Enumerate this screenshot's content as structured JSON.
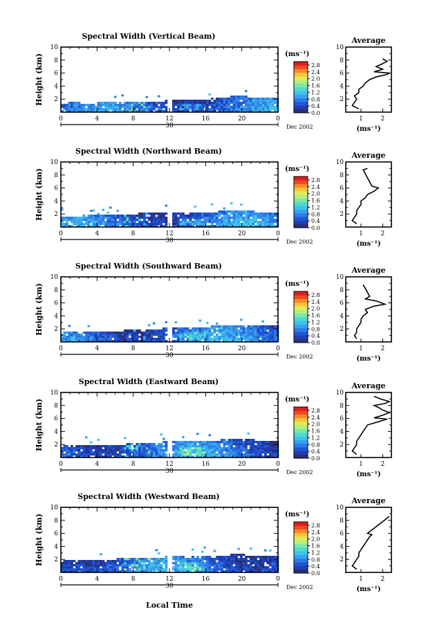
{
  "colors": {
    "colormap": [
      "#2c2f73",
      "#1f3fb0",
      "#1f57d6",
      "#2f7be6",
      "#39a1ee",
      "#3fc2ea",
      "#4fd9cf",
      "#7de6a8",
      "#b3ee80",
      "#e0ea5c",
      "#f6c43b",
      "#f78b2b",
      "#ef4a24",
      "#d9201f"
    ],
    "line": "#000000",
    "background": "#ffffff"
  },
  "figure": {
    "x_axis_label": "Local Time",
    "day_label": "30",
    "month_label": "Dec 2002"
  },
  "chart_data": [
    {
      "type": "heatmap",
      "title": "Spectral Width (Vertical Beam)",
      "ylabel": "Height (km)",
      "x_ticks": [
        "0",
        "4",
        "8",
        "12",
        "16",
        "20",
        "0"
      ],
      "xlim": [
        0,
        24
      ],
      "y_ticks": [
        "2",
        "4",
        "6",
        "8",
        "10"
      ],
      "ylim": [
        0,
        10
      ],
      "colorbar": {
        "unit": "(ms⁻¹)",
        "ticks": [
          "0.0",
          "0.4",
          "0.8",
          "1.2",
          "1.6",
          "2.0",
          "2.4",
          "2.8"
        ],
        "range": [
          0,
          3.0
        ]
      },
      "data_gap_hours": [
        11.8,
        12.3
      ],
      "echo_top_km": [
        [
          0,
          1.4
        ],
        [
          1,
          1.5
        ],
        [
          2,
          1.5
        ],
        [
          3,
          1.4
        ],
        [
          4,
          1.5
        ],
        [
          5,
          1.5
        ],
        [
          6,
          1.6
        ],
        [
          7,
          1.6
        ],
        [
          8,
          1.5
        ],
        [
          9,
          1.6
        ],
        [
          10,
          1.6
        ],
        [
          11,
          1.7
        ],
        [
          12.3,
          2.0
        ],
        [
          13,
          2.0
        ],
        [
          14,
          2.1
        ],
        [
          15,
          2.1
        ],
        [
          16,
          2.0
        ],
        [
          17,
          2.2
        ],
        [
          18,
          2.3
        ],
        [
          19,
          2.5
        ],
        [
          20,
          2.5
        ],
        [
          21,
          2.4
        ],
        [
          22,
          2.3
        ],
        [
          23,
          2.2
        ],
        [
          24,
          2.2
        ]
      ],
      "avg_panel": {
        "title": "Average",
        "xlabel": "(ms⁻¹)",
        "x_ticks": [
          "1",
          "2"
        ],
        "xlim": [
          0.3,
          2.4
        ],
        "profile": [
          [
            0.5,
            0.9
          ],
          [
            1.0,
            0.6
          ],
          [
            1.5,
            0.7
          ],
          [
            2.0,
            0.8
          ],
          [
            2.5,
            0.7
          ],
          [
            3.0,
            0.9
          ],
          [
            3.5,
            0.9
          ],
          [
            4.0,
            1.1
          ],
          [
            4.5,
            1.2
          ],
          [
            5.0,
            1.4
          ],
          [
            5.4,
            1.7
          ],
          [
            5.8,
            2.2
          ],
          [
            6.0,
            2.3
          ],
          [
            6.2,
            1.6
          ],
          [
            6.6,
            2.0
          ],
          [
            7.0,
            1.7
          ],
          [
            7.3,
            1.9
          ],
          [
            7.8,
            2.2
          ],
          [
            8.2,
            2.0
          ]
        ]
      }
    },
    {
      "type": "heatmap",
      "title": "Spectral Width (Northward Beam)",
      "ylabel": "Height (km)",
      "x_ticks": [
        "0",
        "4",
        "8",
        "12",
        "16",
        "20",
        "0"
      ],
      "xlim": [
        0,
        24
      ],
      "y_ticks": [
        "2",
        "4",
        "6",
        "8",
        "10"
      ],
      "ylim": [
        0,
        10
      ],
      "colorbar": {
        "unit": "(ms⁻¹)",
        "ticks": [
          "0.0",
          "0.4",
          "0.8",
          "1.2",
          "1.6",
          "2.0",
          "2.4",
          "2.8"
        ],
        "range": [
          0,
          3.0
        ]
      },
      "data_gap_hours": [
        11.8,
        12.3
      ],
      "echo_top_km": [
        [
          0,
          1.7
        ],
        [
          1,
          1.8
        ],
        [
          2,
          1.8
        ],
        [
          3,
          1.9
        ],
        [
          4,
          1.8
        ],
        [
          5,
          1.9
        ],
        [
          6,
          2.0
        ],
        [
          7,
          2.0
        ],
        [
          8,
          2.1
        ],
        [
          9,
          2.2
        ],
        [
          10,
          2.2
        ],
        [
          11,
          2.3
        ],
        [
          12.3,
          2.3
        ],
        [
          13,
          2.2
        ],
        [
          14,
          2.1
        ],
        [
          15,
          2.2
        ],
        [
          16,
          2.3
        ],
        [
          17,
          2.4
        ],
        [
          18,
          2.5
        ],
        [
          19,
          2.6
        ],
        [
          20,
          2.6
        ],
        [
          21,
          2.5
        ],
        [
          22,
          2.4
        ],
        [
          23,
          2.4
        ],
        [
          24,
          2.3
        ]
      ],
      "avg_panel": {
        "title": "Average",
        "xlabel": "(ms⁻¹)",
        "x_ticks": [
          "1",
          "2"
        ],
        "xlim": [
          0.3,
          2.4
        ],
        "profile": [
          [
            0.5,
            0.8
          ],
          [
            1.0,
            0.6
          ],
          [
            1.5,
            0.7
          ],
          [
            2.0,
            0.8
          ],
          [
            2.5,
            0.8
          ],
          [
            3.0,
            0.9
          ],
          [
            3.5,
            1.0
          ],
          [
            4.0,
            1.0
          ],
          [
            4.5,
            1.2
          ],
          [
            5.0,
            1.3
          ],
          [
            5.5,
            1.6
          ],
          [
            6.0,
            1.8
          ],
          [
            6.3,
            1.5
          ],
          [
            8.8,
            1.1
          ],
          [
            9.0,
            1.3
          ]
        ]
      }
    },
    {
      "type": "heatmap",
      "title": "Spectral Width (Southward Beam)",
      "ylabel": "Height (km)",
      "x_ticks": [
        "0",
        "4",
        "8",
        "12",
        "16",
        "20",
        "0"
      ],
      "xlim": [
        0,
        24
      ],
      "y_ticks": [
        "2",
        "4",
        "6",
        "8",
        "10"
      ],
      "ylim": [
        0,
        10
      ],
      "colorbar": {
        "unit": "(ms⁻¹)",
        "ticks": [
          "0.0",
          "0.4",
          "0.8",
          "1.2",
          "1.6",
          "2.0",
          "2.4",
          "2.8"
        ],
        "range": [
          0,
          3.0
        ]
      },
      "data_gap_hours": [
        11.8,
        12.3
      ],
      "echo_top_km": [
        [
          0,
          1.6
        ],
        [
          1,
          1.6
        ],
        [
          2,
          1.7
        ],
        [
          3,
          1.6
        ],
        [
          4,
          1.7
        ],
        [
          5,
          1.7
        ],
        [
          6,
          1.8
        ],
        [
          7,
          1.8
        ],
        [
          8,
          1.9
        ],
        [
          9,
          2.0
        ],
        [
          10,
          2.0
        ],
        [
          11,
          2.1
        ],
        [
          12.3,
          2.3
        ],
        [
          13,
          2.3
        ],
        [
          14,
          2.2
        ],
        [
          15,
          2.3
        ],
        [
          16,
          2.4
        ],
        [
          17,
          2.5
        ],
        [
          18,
          2.6
        ],
        [
          19,
          2.6
        ],
        [
          20,
          2.7
        ],
        [
          21,
          2.7
        ],
        [
          22,
          2.6
        ],
        [
          23,
          2.6
        ],
        [
          24,
          2.5
        ]
      ],
      "avg_panel": {
        "title": "Average",
        "xlabel": "(ms⁻¹)",
        "x_ticks": [
          "1",
          "2"
        ],
        "xlim": [
          0.3,
          2.4
        ],
        "profile": [
          [
            0.5,
            0.8
          ],
          [
            1.0,
            0.7
          ],
          [
            1.5,
            0.8
          ],
          [
            2.0,
            0.8
          ],
          [
            2.5,
            0.9
          ],
          [
            3.0,
            1.0
          ],
          [
            3.5,
            1.0
          ],
          [
            4.0,
            1.1
          ],
          [
            4.5,
            1.3
          ],
          [
            5.0,
            1.2
          ],
          [
            5.5,
            1.6
          ],
          [
            5.8,
            2.1
          ],
          [
            6.3,
            1.7
          ],
          [
            6.6,
            1.2
          ],
          [
            7.0,
            1.4
          ],
          [
            8.8,
            1.1
          ]
        ]
      }
    },
    {
      "type": "heatmap",
      "title": "Spectral Width (Eastward Beam)",
      "ylabel": "Height (km)",
      "x_ticks": [
        "0",
        "4",
        "8",
        "12",
        "16",
        "20",
        "0"
      ],
      "xlim": [
        0,
        24
      ],
      "y_ticks": [
        "2",
        "4",
        "6",
        "8",
        "10"
      ],
      "ylim": [
        0,
        10
      ],
      "colorbar": {
        "unit": "(ms⁻¹)",
        "ticks": [
          "0.0",
          "0.4",
          "0.8",
          "1.2",
          "1.6",
          "2.0",
          "2.4",
          "2.8"
        ],
        "range": [
          0,
          3.0
        ]
      },
      "data_gap_hours": [
        11.8,
        12.3
      ],
      "echo_top_km": [
        [
          0,
          1.9
        ],
        [
          1,
          1.8
        ],
        [
          2,
          1.9
        ],
        [
          3,
          2.0
        ],
        [
          4,
          1.9
        ],
        [
          5,
          2.0
        ],
        [
          6,
          2.0
        ],
        [
          7,
          2.1
        ],
        [
          8,
          2.2
        ],
        [
          9,
          2.3
        ],
        [
          10,
          2.4
        ],
        [
          11,
          2.4
        ],
        [
          12.3,
          2.6
        ],
        [
          13,
          2.6
        ],
        [
          14,
          2.5
        ],
        [
          15,
          2.5
        ],
        [
          16,
          2.6
        ],
        [
          17,
          2.7
        ],
        [
          18,
          2.8
        ],
        [
          19,
          2.8
        ],
        [
          20,
          2.9
        ],
        [
          21,
          2.8
        ],
        [
          22,
          2.7
        ],
        [
          23,
          2.6
        ],
        [
          24,
          2.6
        ]
      ],
      "avg_panel": {
        "title": "Average",
        "xlabel": "(ms⁻¹)",
        "x_ticks": [
          "1",
          "2"
        ],
        "xlim": [
          0.3,
          2.4
        ],
        "profile": [
          [
            0.5,
            0.8
          ],
          [
            1.0,
            0.6
          ],
          [
            1.5,
            0.7
          ],
          [
            2.0,
            0.8
          ],
          [
            2.5,
            0.8
          ],
          [
            3.0,
            0.9
          ],
          [
            3.5,
            1.0
          ],
          [
            4.0,
            1.1
          ],
          [
            4.5,
            1.2
          ],
          [
            5.0,
            1.3
          ],
          [
            5.5,
            1.8
          ],
          [
            5.9,
            2.2
          ],
          [
            6.1,
            1.6
          ],
          [
            6.5,
            2.0
          ],
          [
            6.9,
            2.3
          ],
          [
            7.3,
            2.0
          ],
          [
            7.7,
            1.8
          ],
          [
            8.0,
            1.6
          ],
          [
            8.3,
            2.1
          ],
          [
            8.6,
            2.3
          ],
          [
            9.0,
            1.9
          ],
          [
            9.4,
            1.6
          ]
        ]
      }
    },
    {
      "type": "heatmap",
      "title": "Spectral Width (Westward Beam)",
      "ylabel": "Height (km)",
      "x_ticks": [
        "0",
        "4",
        "8",
        "12",
        "16",
        "20",
        "0"
      ],
      "xlim": [
        0,
        24
      ],
      "y_ticks": [
        "2",
        "4",
        "6",
        "8",
        "10"
      ],
      "ylim": [
        0,
        10
      ],
      "colorbar": {
        "unit": "(ms⁻¹)",
        "ticks": [
          "0.0",
          "0.4",
          "0.8",
          "1.2",
          "1.6",
          "2.0",
          "2.4",
          "2.8"
        ],
        "range": [
          0,
          3.0
        ]
      },
      "data_gap_hours": [
        11.8,
        12.3
      ],
      "echo_top_km": [
        [
          0,
          1.9
        ],
        [
          1,
          2.0
        ],
        [
          2,
          1.9
        ],
        [
          3,
          2.0
        ],
        [
          4,
          2.0
        ],
        [
          5,
          2.1
        ],
        [
          6,
          2.1
        ],
        [
          7,
          2.2
        ],
        [
          8,
          2.2
        ],
        [
          9,
          2.3
        ],
        [
          10,
          2.4
        ],
        [
          11,
          2.4
        ],
        [
          12.3,
          2.5
        ],
        [
          13,
          2.5
        ],
        [
          14,
          2.4
        ],
        [
          15,
          2.5
        ],
        [
          16,
          2.6
        ],
        [
          17,
          2.6
        ],
        [
          18,
          2.7
        ],
        [
          19,
          2.8
        ],
        [
          20,
          2.8
        ],
        [
          21,
          2.7
        ],
        [
          22,
          2.6
        ],
        [
          23,
          2.6
        ],
        [
          24,
          2.5
        ]
      ],
      "avg_panel": {
        "title": "Average",
        "xlabel": "(ms⁻¹)",
        "x_ticks": [
          "1",
          "2"
        ],
        "xlim": [
          0.3,
          2.4
        ],
        "profile": [
          [
            0.5,
            0.8
          ],
          [
            1.0,
            0.6
          ],
          [
            1.5,
            0.7
          ],
          [
            2.0,
            0.8
          ],
          [
            2.5,
            0.9
          ],
          [
            3.0,
            0.9
          ],
          [
            3.5,
            1.0
          ],
          [
            4.0,
            1.1
          ],
          [
            4.5,
            1.2
          ],
          [
            5.0,
            1.3
          ],
          [
            5.5,
            1.4
          ],
          [
            5.8,
            1.5
          ],
          [
            6.0,
            1.3
          ],
          [
            8.6,
            2.3
          ]
        ]
      }
    }
  ]
}
